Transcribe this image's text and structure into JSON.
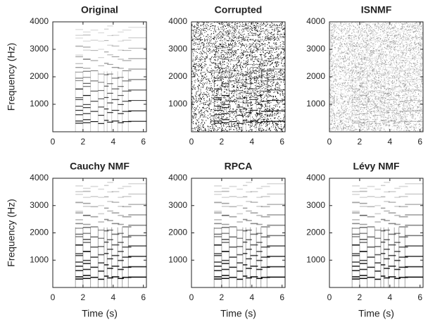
{
  "chart_data": [
    {
      "type": "spectrogram",
      "title": "Original",
      "ylabel": "Frequency (Hz)",
      "xlim": [
        0,
        6.2
      ],
      "ylim": [
        0,
        4000
      ],
      "xticks": [
        0,
        2,
        4,
        6
      ],
      "yticks": [
        1000,
        2000,
        3000,
        4000
      ]
    },
    {
      "type": "spectrogram",
      "title": "Corrupted",
      "xlim": [
        0,
        6.2
      ],
      "ylim": [
        0,
        4000
      ],
      "xticks": [
        0,
        2,
        4,
        6
      ],
      "yticks": [
        1000,
        2000,
        3000,
        4000
      ]
    },
    {
      "type": "spectrogram",
      "title": "ISNMF",
      "xlim": [
        0,
        6.2
      ],
      "ylim": [
        0,
        4000
      ],
      "xticks": [
        0,
        2,
        4,
        6
      ],
      "yticks": [
        1000,
        2000,
        3000,
        4000
      ]
    },
    {
      "type": "spectrogram",
      "title": "Cauchy NMF",
      "ylabel": "Frequency (Hz)",
      "xlabel": "Time (s)",
      "xlim": [
        0,
        6.2
      ],
      "ylim": [
        0,
        4000
      ],
      "xticks": [
        0,
        2,
        4,
        6
      ],
      "yticks": [
        1000,
        2000,
        3000,
        4000
      ]
    },
    {
      "type": "spectrogram",
      "title": "RPCA",
      "xlabel": "Time (s)",
      "xlim": [
        0,
        6.2
      ],
      "ylim": [
        0,
        4000
      ],
      "xticks": [
        0,
        2,
        4,
        6
      ],
      "yticks": [
        1000,
        2000,
        3000,
        4000
      ]
    },
    {
      "type": "spectrogram",
      "title": "Lévy NMF",
      "xlabel": "Time (s)",
      "xlim": [
        0,
        6.2
      ],
      "ylim": [
        0,
        4000
      ],
      "xticks": [
        0,
        2,
        4,
        6
      ],
      "yticks": [
        1000,
        2000,
        3000,
        4000
      ]
    }
  ]
}
